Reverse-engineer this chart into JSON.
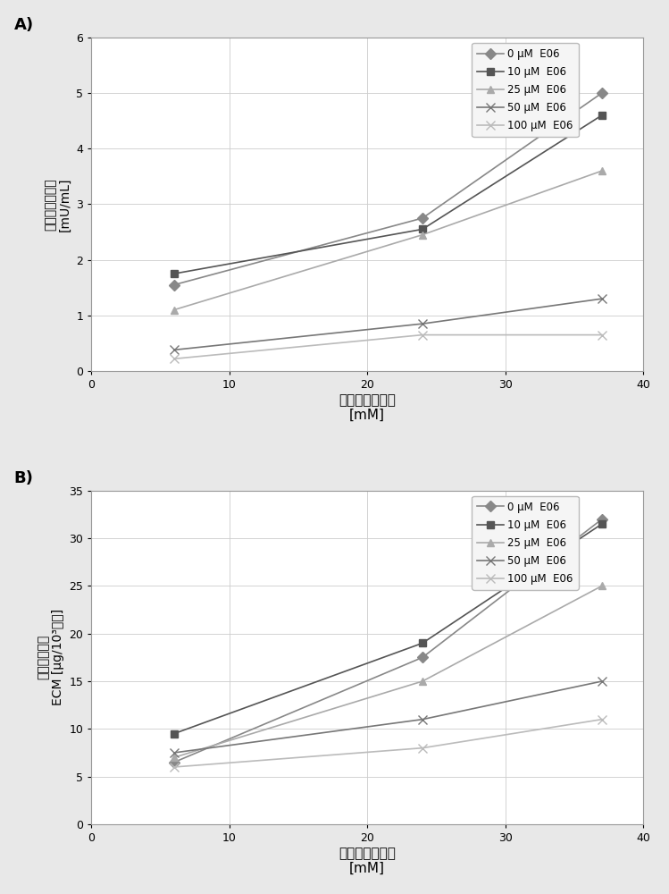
{
  "panel_A": {
    "x": [
      6,
      24,
      37
    ],
    "series": [
      {
        "label": "0 μM  E06",
        "y": [
          1.55,
          2.75,
          5.0
        ],
        "color": "#888888",
        "marker": "D",
        "markersize": 6
      },
      {
        "label": "10 μM  E06",
        "y": [
          1.75,
          2.55,
          4.6
        ],
        "color": "#555555",
        "marker": "s",
        "markersize": 6
      },
      {
        "label": "25 μM  E06",
        "y": [
          1.1,
          2.45,
          3.6
        ],
        "color": "#aaaaaa",
        "marker": "^",
        "markersize": 6
      },
      {
        "label": "50 μM  E06",
        "y": [
          0.38,
          0.85,
          1.3
        ],
        "color": "#777777",
        "marker": "x",
        "markersize": 7
      },
      {
        "label": "100 μM  E06",
        "y": [
          0.22,
          0.65,
          0.65
        ],
        "color": "#bbbbbb",
        "marker": "x",
        "markersize": 7
      }
    ],
    "ylabel_line1": "转谷氨酰胺活性",
    "ylabel_line2": "[mU/mL]",
    "xlabel_line1": "中位葡萄糖浓度",
    "xlabel_line2": "[mM]",
    "ylim": [
      0,
      6
    ],
    "yticks": [
      0,
      1,
      2,
      3,
      4,
      5,
      6
    ],
    "xlim": [
      0,
      40
    ],
    "xticks": [
      0,
      10,
      20,
      30,
      40
    ]
  },
  "panel_B": {
    "x": [
      6,
      24,
      37
    ],
    "series": [
      {
        "label": "0 μM  E06",
        "y": [
          6.5,
          17.5,
          32.0
        ],
        "color": "#888888",
        "marker": "D",
        "markersize": 6
      },
      {
        "label": "10 μM  E06",
        "y": [
          9.5,
          19.0,
          31.5
        ],
        "color": "#555555",
        "marker": "s",
        "markersize": 6
      },
      {
        "label": "25 μM  E06",
        "y": [
          7.0,
          15.0,
          25.0
        ],
        "color": "#aaaaaa",
        "marker": "^",
        "markersize": 6
      },
      {
        "label": "50 μM  E06",
        "y": [
          7.5,
          11.0,
          15.0
        ],
        "color": "#777777",
        "marker": "x",
        "markersize": 7
      },
      {
        "label": "100 μM  E06",
        "y": [
          6.0,
          8.0,
          11.0
        ],
        "color": "#bbbbbb",
        "marker": "x",
        "markersize": 7
      }
    ],
    "ylabel_line1": "胞外基质蛋白",
    "ylabel_line2": "ECM [μg/10³细胞]",
    "xlabel_line1": "中位葡萄糖浓度",
    "xlabel_line2": "[mM]",
    "ylim": [
      0,
      35
    ],
    "yticks": [
      0,
      5,
      10,
      15,
      20,
      25,
      30,
      35
    ],
    "xlim": [
      0,
      40
    ],
    "xticks": [
      0,
      10,
      20,
      30,
      40
    ]
  },
  "fig_bg_color": "#e8e8e8",
  "plot_bg_color": "#ffffff",
  "grid_color": "#cccccc",
  "border_color": "#999999",
  "font_size_label": 10,
  "font_size_tick": 9,
  "font_size_legend": 8.5,
  "font_size_panel_label": 13,
  "font_size_xlabel": 11
}
